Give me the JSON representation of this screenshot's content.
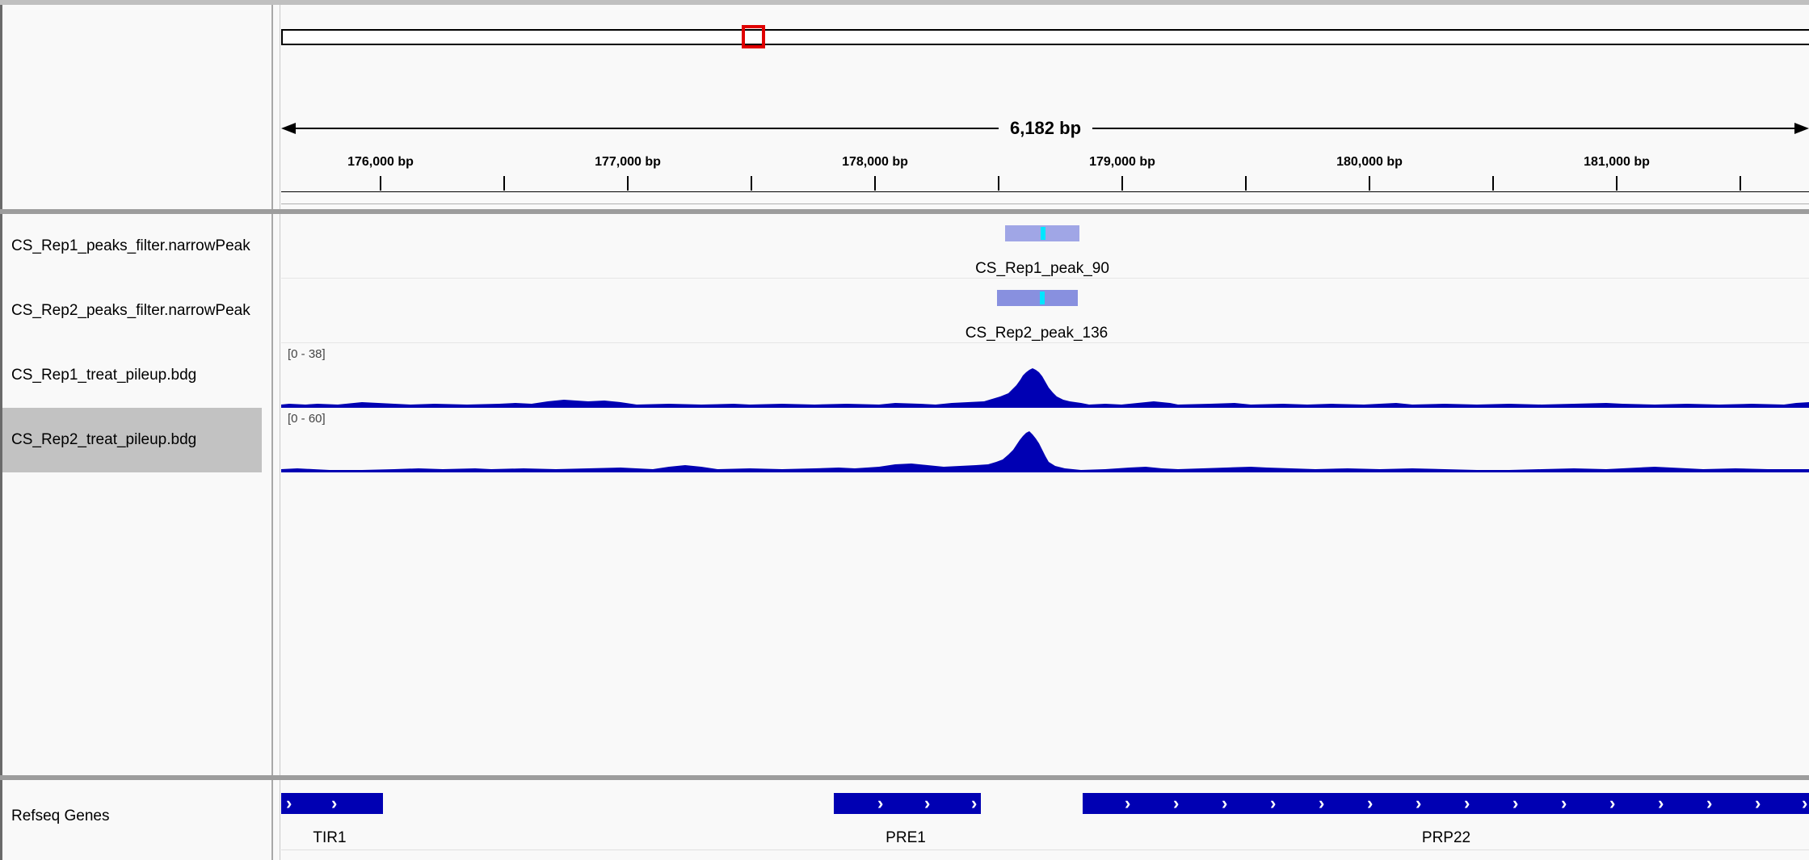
{
  "ruler": {
    "span_label": "6,182 bp",
    "ticks": [
      "176,000 bp",
      "177,000 bp",
      "178,000 bp",
      "179,000 bp",
      "180,000 bp",
      "181,000 bp"
    ]
  },
  "tracks": [
    {
      "name": "CS_Rep1_peaks_filter.narrowPeak",
      "feature_label": "CS_Rep1_peak_90"
    },
    {
      "name": "CS_Rep2_peaks_filter.narrowPeak",
      "feature_label": "CS_Rep2_peak_136"
    },
    {
      "name": "CS_Rep1_treat_pileup.bdg",
      "range": "[0 - 38]"
    },
    {
      "name": "CS_Rep2_treat_pileup.bdg",
      "range": "[0 - 60]",
      "selected": true
    }
  ],
  "genes_track": {
    "name": "Refseq Genes",
    "genes": [
      "TIR1",
      "PRE1",
      "PRP22"
    ]
  },
  "colors": {
    "coverage": "#0000b3",
    "peak_rep1": "#a0a6e6",
    "peak_rep2": "#8890df",
    "summit": "#00e5ff",
    "gene": "#0000b3",
    "locator_box": "#e00000"
  }
}
